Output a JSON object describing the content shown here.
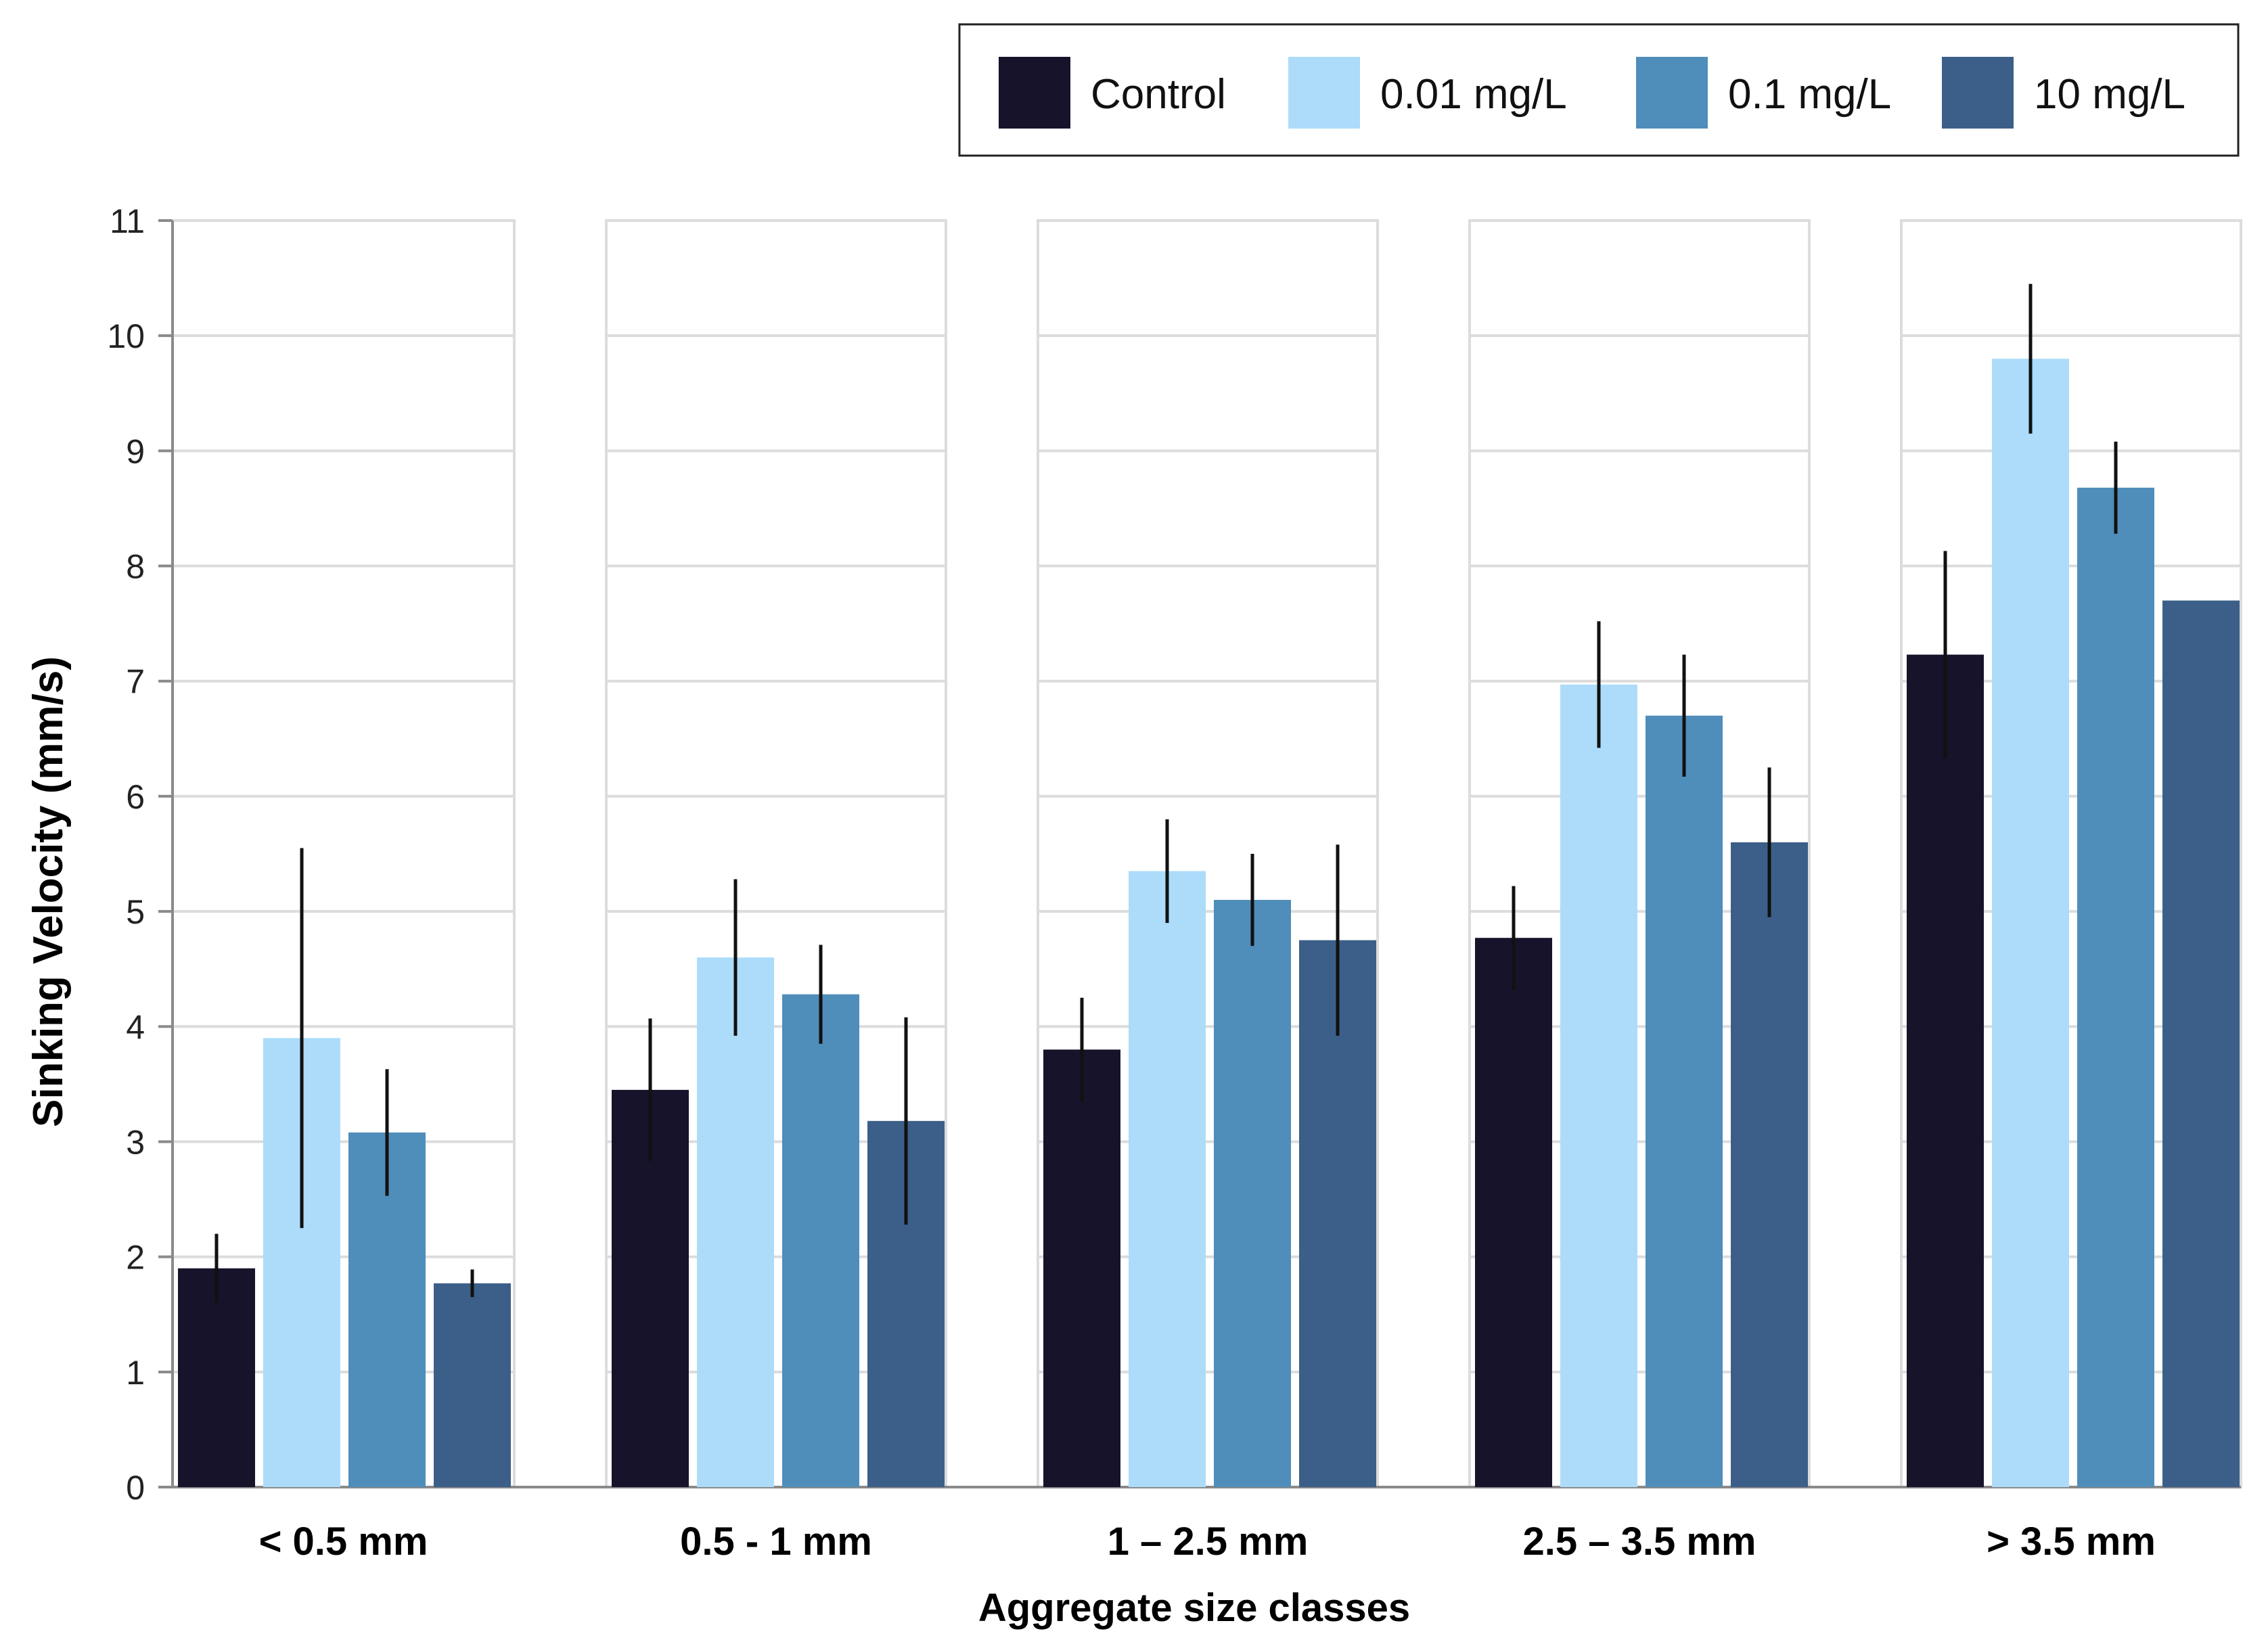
{
  "chart_data": {
    "type": "bar",
    "title": "",
    "xlabel": "Aggregate size classes",
    "ylabel": "Sinking Velocity (mm/s)",
    "ylim": [
      0,
      11
    ],
    "yticks": [
      "0",
      "1",
      "2",
      "3",
      "4",
      "5",
      "6",
      "7",
      "8",
      "9",
      "10",
      "11"
    ],
    "grid": true,
    "legend_position": "top-right",
    "categories": [
      "< 0.5 mm",
      "0.5 - 1 mm",
      "1 – 2.5 mm",
      "2.5 – 3.5 mm",
      "> 3.5 mm"
    ],
    "series": [
      {
        "name": "Control",
        "color": "#17132b",
        "values": [
          1.9,
          3.45,
          3.8,
          4.77,
          7.23
        ],
        "errors": [
          0.3,
          0.62,
          0.45,
          0.45,
          0.9
        ]
      },
      {
        "name": "0.01 mg/L",
        "color": "#acdcfa",
        "values": [
          3.9,
          4.6,
          5.35,
          6.97,
          9.8
        ],
        "errors": [
          1.65,
          0.68,
          0.45,
          0.55,
          0.65
        ]
      },
      {
        "name": "0.1 mg/L",
        "color": "#4f8dba",
        "values": [
          3.08,
          4.28,
          5.1,
          6.7,
          8.68
        ],
        "errors": [
          0.55,
          0.43,
          0.4,
          0.53,
          0.4
        ]
      },
      {
        "name": "10 mg/L",
        "color": "#3b5f88",
        "values": [
          1.77,
          3.18,
          4.75,
          5.6,
          7.7
        ],
        "errors": [
          0.12,
          0.9,
          0.83,
          0.65,
          0
        ]
      }
    ]
  }
}
